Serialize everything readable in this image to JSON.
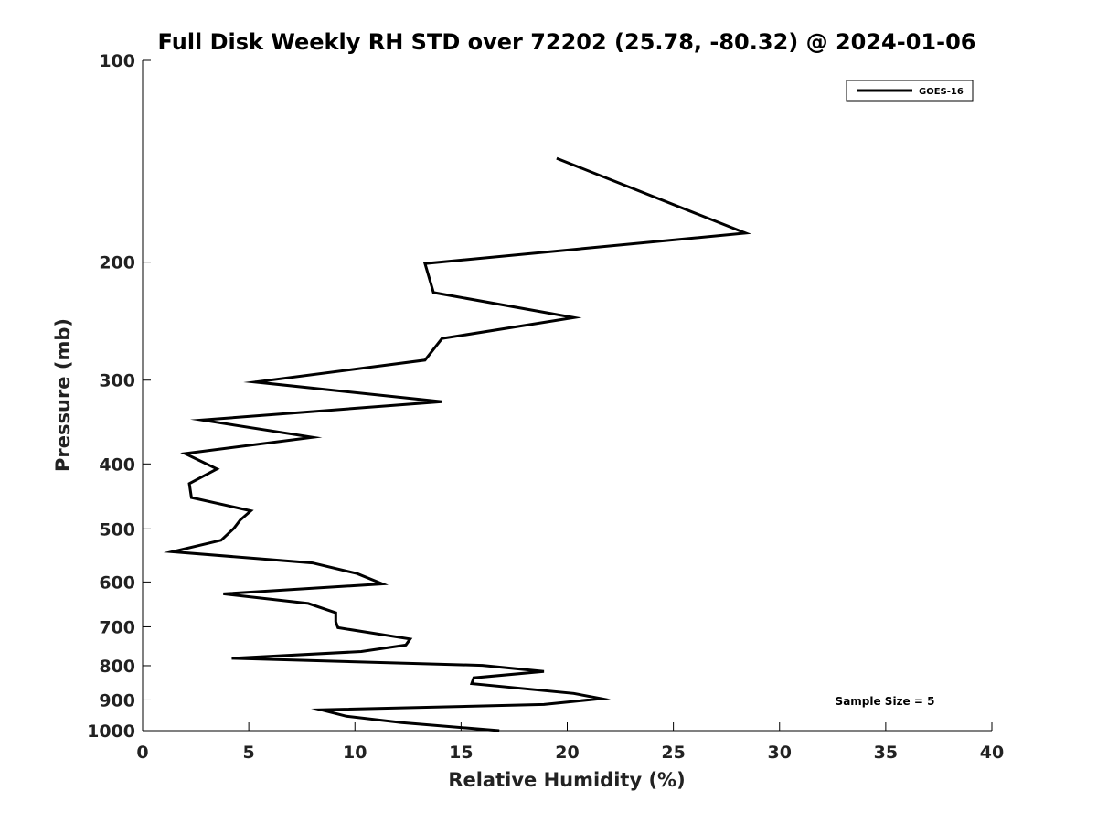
{
  "chart_data": {
    "type": "line",
    "title": "Full Disk Weekly RH STD over 72202 (25.78, -80.32) @ 2024-01-06",
    "xlabel": "Relative Humidity (%)",
    "ylabel": "Pressure (mb)",
    "xlim": [
      0,
      40
    ],
    "ylim": [
      100,
      1000
    ],
    "yscale": "log",
    "y_reversed": true,
    "x_ticks": [
      0,
      5,
      10,
      15,
      20,
      25,
      30,
      35,
      40
    ],
    "x_tick_labels": [
      "0",
      "5",
      "10",
      "15",
      "20",
      "25",
      "30",
      "35",
      "40"
    ],
    "y_ticks": [
      100,
      200,
      300,
      400,
      500,
      600,
      700,
      800,
      900,
      1000
    ],
    "y_tick_labels": [
      "100",
      "200",
      "300",
      "400",
      "500",
      "600",
      "700",
      "800",
      "900",
      "1000"
    ],
    "grid": false,
    "legend_position": "top-right",
    "annotation": "Sample Size = 5",
    "series": [
      {
        "name": "GOES-16",
        "color": "#000000",
        "points": [
          [
            19.5,
            140
          ],
          [
            28.4,
            181
          ],
          [
            13.3,
            201
          ],
          [
            13.7,
            222
          ],
          [
            20.3,
            242
          ],
          [
            14.1,
            260
          ],
          [
            13.3,
            280
          ],
          [
            5.3,
            302
          ],
          [
            14.1,
            323
          ],
          [
            2.8,
            344
          ],
          [
            8.0,
            365
          ],
          [
            2.0,
            386
          ],
          [
            3.5,
            407
          ],
          [
            2.2,
            428
          ],
          [
            2.3,
            449
          ],
          [
            5.1,
            470
          ],
          [
            4.6,
            485
          ],
          [
            4.3,
            499
          ],
          [
            3.7,
            520
          ],
          [
            1.4,
            541
          ],
          [
            8.0,
            562
          ],
          [
            10.1,
            583
          ],
          [
            11.3,
            604
          ],
          [
            3.8,
            625
          ],
          [
            7.8,
            646
          ],
          [
            9.1,
            667
          ],
          [
            9.1,
            688
          ],
          [
            9.2,
            702
          ],
          [
            12.6,
            730
          ],
          [
            12.4,
            745
          ],
          [
            10.3,
            762
          ],
          [
            4.2,
            780
          ],
          [
            16.0,
            799
          ],
          [
            18.9,
            816
          ],
          [
            15.6,
            834
          ],
          [
            15.5,
            851
          ],
          [
            20.3,
            880
          ],
          [
            21.6,
            896
          ],
          [
            18.9,
            914
          ],
          [
            8.4,
            931
          ],
          [
            9.6,
            952
          ],
          [
            12.2,
            973
          ],
          [
            16.8,
            1000
          ]
        ]
      }
    ]
  }
}
